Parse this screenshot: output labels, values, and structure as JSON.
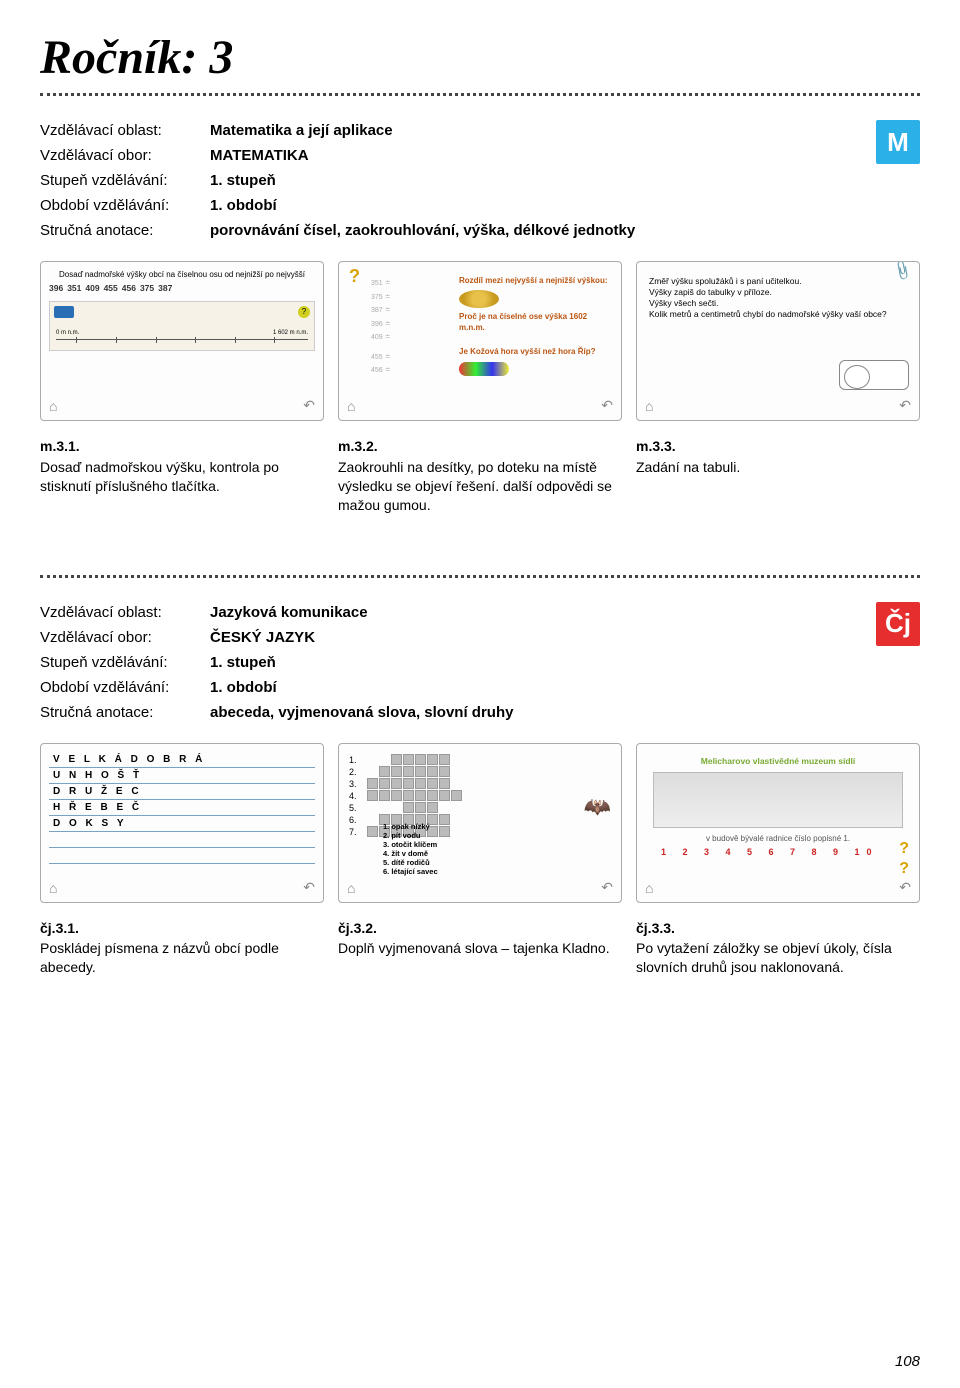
{
  "page_title": "Ročník: 3",
  "page_number": "108",
  "section1": {
    "labels": {
      "oblast": "Vzdělávací oblast:",
      "obor": "Vzdělávací obor:",
      "stupen": "Stupeň vzdělávání:",
      "obdobi": "Období vzdělávání:",
      "anotace": "Stručná anotace:"
    },
    "values": {
      "oblast": "Matematika a její aplikace",
      "obor": "MATEMATIKA",
      "stupen": "1. stupeň",
      "obdobi": "1. období",
      "anotace": "porovnávání čísel, zaokrouhlování, výška, délkové jednotky"
    },
    "badge": "M",
    "thumb1": {
      "title": "Dosaď nadmořské výšky obcí na číselnou osu od nejnižší po nejvyšší",
      "tags": [
        "396",
        "351",
        "409",
        "455",
        "456",
        "375",
        "387"
      ],
      "axis_lo": "0 m n.m.",
      "axis_hi": "1 602 m n.m."
    },
    "thumb2": {
      "nums": [
        "351",
        "375",
        "387",
        "396",
        "409",
        "455",
        "456"
      ],
      "r1": "Rozdíl mezi nejvyšší a nejnižší výškou:",
      "r2": "Proč je na číselné ose výška 1602 m.n.m.",
      "r3": "Je Kožová hora vyšší než hora Říp?"
    },
    "thumb3": {
      "l1": "Změř výšku spolužáků i s paní učitelkou.",
      "l2": "Výšky zapiš do tabulky v příloze.",
      "l3": "Výšky všech sečti.",
      "l4": "Kolik metrů a centimetrů chybí do nadmořské výšky vaší obce?"
    },
    "cap1": {
      "code": "m.3.1.",
      "text": "Dosaď nadmořskou výšku, kontrola po stisknutí příslušného tlačítka."
    },
    "cap2": {
      "code": "m.3.2.",
      "text": "Zaokrouhli na desítky, po doteku na místě výsledku se objeví řešení. další odpovědi se mažou gumou."
    },
    "cap3": {
      "code": "m.3.3.",
      "text": "Zadání na tabuli."
    }
  },
  "section2": {
    "values": {
      "oblast": "Jazyková komunikace",
      "obor": "ČESKÝ JAZYK",
      "stupen": "1. stupeň",
      "obdobi": "1. období",
      "anotace": "abeceda, vyjmenovaná slova, slovní druhy"
    },
    "badge": "Čj",
    "thumb4": {
      "words": [
        "V E L K Á   D O B R Á",
        "U N H O Š Ť",
        "D R U Ž E C",
        "H Ř E B E Č",
        "D O K S Y"
      ]
    },
    "thumb5": {
      "rows": [
        5,
        6,
        7,
        8,
        3,
        6,
        7
      ],
      "hints": [
        "1. opak nízký",
        "2. pít vodu",
        "3. otočit klíčem",
        "4. žít v domě",
        "5. dítě rodičů",
        "6. létající savec"
      ]
    },
    "thumb6": {
      "title": "Melicharovo vlastivědné muzeum sídlí",
      "sub": "v budově bývalé radnice číslo popisné 1.",
      "nums": "1 2 3 4 5 6 7 8 9 10"
    },
    "cap1": {
      "code": "čj.3.1.",
      "text": "Poskládej písmena z názvů obcí podle abecedy."
    },
    "cap2": {
      "code": "čj.3.2.",
      "text": "Doplň vyjmenovaná slova – tajenka Kladno."
    },
    "cap3": {
      "code": "čj.3.3.",
      "text": "Po vytažení záložky se objeví úkoly, čísla slovních druhů jsou naklonovaná."
    }
  }
}
